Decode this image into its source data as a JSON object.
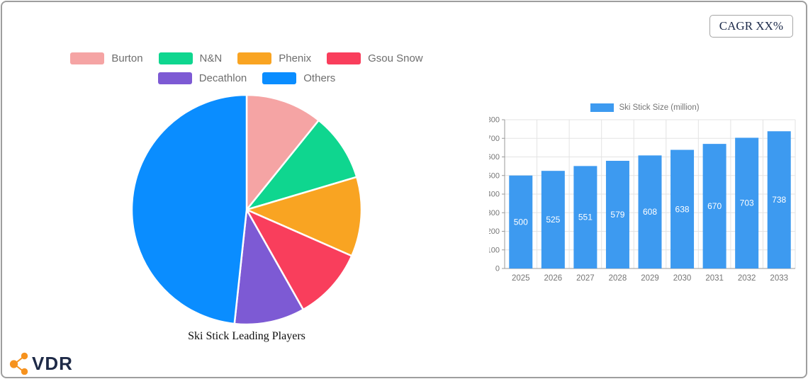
{
  "cagr_badge": {
    "label": "CAGR XX%"
  },
  "brand": {
    "text": "VDR",
    "icon_color": "#F6921E",
    "text_color": "#1E2A47"
  },
  "chart_data": [
    {
      "type": "pie",
      "title": "Ski Stick Leading Players",
      "labels": [
        "Burton",
        "N&N",
        "Phenix",
        "Gsou Snow",
        "Decathlon",
        "Others"
      ],
      "values": [
        10.8,
        9.6,
        11.2,
        10.2,
        9.9,
        48.3
      ],
      "unit": "percent-share",
      "colors": [
        "#F5A4A4",
        "#0FD68F",
        "#F9A422",
        "#F93E5C",
        "#7D5AD4",
        "#0A8DFF"
      ],
      "legend_rows": [
        4,
        2
      ],
      "legend_position": "top",
      "start_angle_deg": -90,
      "direction": "clockwise",
      "separator_color": "#ffffff"
    },
    {
      "type": "bar",
      "legend": "Ski Stick Size (million)",
      "categories": [
        "2025",
        "2026",
        "2027",
        "2028",
        "2029",
        "2030",
        "2031",
        "2032",
        "2033"
      ],
      "values": [
        500,
        525,
        551,
        579,
        608,
        638,
        670,
        703,
        738
      ],
      "ylim": [
        0,
        800
      ],
      "ytick_step": 100,
      "bar_color": "#3D9AF0",
      "grid": true,
      "gridline_color": "#e3e3e3",
      "axis_color": "#999999",
      "tick_label_color": "#757575",
      "value_label_color": "#ffffff",
      "legend_position": "top"
    }
  ]
}
